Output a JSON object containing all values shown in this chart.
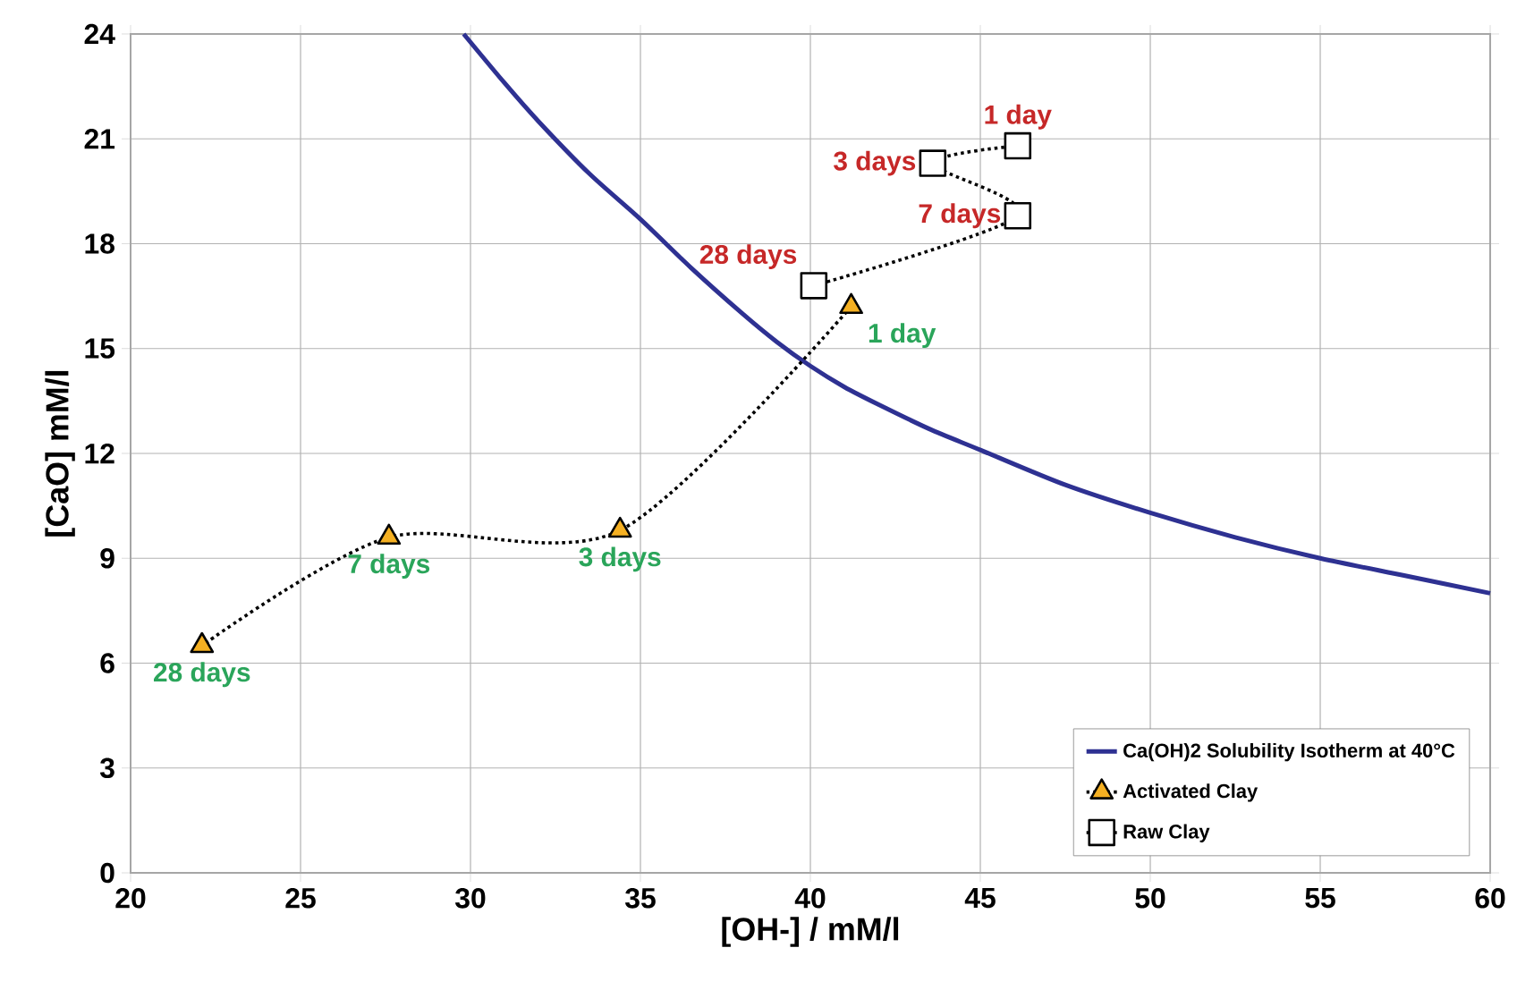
{
  "chart_data": {
    "type": "line",
    "xlabel": "[OH-] / mM/l",
    "ylabel": "[CaO] mM/l",
    "xlim": [
      20,
      60
    ],
    "ylim": [
      0,
      24
    ],
    "xticks": [
      20,
      25,
      30,
      35,
      40,
      45,
      50,
      55,
      60
    ],
    "yticks": [
      0,
      3,
      6,
      9,
      12,
      15,
      18,
      21,
      24
    ],
    "grid": true,
    "legend": "bottom right",
    "series": [
      {
        "name": "Ca(OH)2 Solubility Isotherm at 40°C",
        "color": "#2e3192",
        "marker": "none",
        "line_style": "solid",
        "x": [
          29.8,
          31,
          32,
          33.5,
          35,
          36.5,
          38,
          39,
          40,
          41,
          42,
          43.5,
          45,
          47.5,
          50,
          52.5,
          55,
          57.5,
          60
        ],
        "values": [
          24,
          22.6,
          21.5,
          20.0,
          18.7,
          17.3,
          16.0,
          15.2,
          14.5,
          13.9,
          13.4,
          12.7,
          12.1,
          11.1,
          10.3,
          9.6,
          9.0,
          8.5,
          8.0
        ]
      },
      {
        "name": "Activated Clay",
        "color": "#f5b022",
        "marker": "triangle",
        "line_style": "dotted",
        "x": [
          41.2,
          34.4,
          27.6,
          22.1
        ],
        "values": [
          16.2,
          9.8,
          9.6,
          6.5
        ]
      },
      {
        "name": "Raw Clay",
        "color": "#ffffff",
        "marker": "square",
        "line_style": "dotted",
        "x": [
          46.1,
          43.6,
          46.1,
          40.1
        ],
        "values": [
          20.8,
          20.3,
          18.8,
          16.8
        ]
      }
    ],
    "annotations": [
      {
        "text": "1 day",
        "x": 41.2,
        "y": 16.2
      },
      {
        "text": "3 days",
        "x": 34.4,
        "y": 9.8
      },
      {
        "text": "7 days",
        "x": 27.6,
        "y": 9.6
      },
      {
        "text": "28 days",
        "x": 22.1,
        "y": 6.5
      },
      {
        "text": "1 day",
        "x": 46.1,
        "y": 20.8
      },
      {
        "text": "3 days",
        "x": 43.6,
        "y": 20.3
      },
      {
        "text": "7 days",
        "x": 46.1,
        "y": 18.8
      },
      {
        "text": "28 days",
        "x": 40.1,
        "y": 16.8
      }
    ]
  }
}
